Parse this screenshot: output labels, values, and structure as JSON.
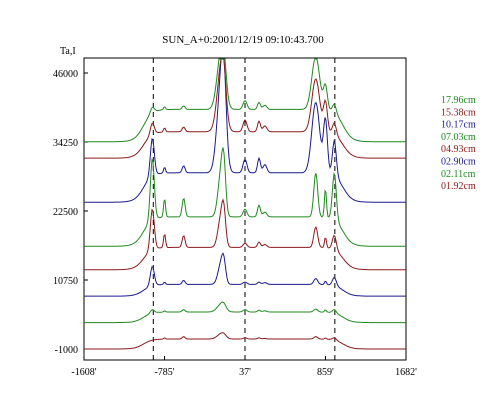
{
  "chart_data": {
    "type": "line",
    "title": "SUN_A+0:2001/12/19 09:10:43.700",
    "ylabel": "Ta,I",
    "xlabel": "",
    "xlim": [
      -1608,
      1682
    ],
    "ylim": [
      -1000,
      49000
    ],
    "x_ticks": [
      -1608,
      -785,
      37,
      859,
      1682
    ],
    "x_tick_labels": [
      "-1608'",
      "-785'",
      "37'",
      "859'",
      "1682'"
    ],
    "y_ticks": [
      46000,
      34250,
      22500,
      10750,
      -1000
    ],
    "y_tick_labels": [
      "46000",
      "34250",
      "22500",
      "10750",
      "-1000"
    ],
    "dashed_markers_x": [
      -900,
      37,
      955
    ],
    "grid": false,
    "legend_position": "right",
    "series": [
      {
        "name": "01.92cm",
        "color": "#8b1a1a",
        "baseline": -1000,
        "peaks": [
          [
            -910,
            0,
            20
          ],
          [
            -785,
            200,
            10
          ],
          [
            -590,
            400,
            15
          ],
          [
            -210,
            800,
            40
          ],
          [
            -180,
            400,
            25
          ],
          [
            37,
            200,
            20
          ],
          [
            180,
            200,
            15
          ],
          [
            240,
            100,
            20
          ],
          [
            760,
            400,
            20
          ],
          [
            859,
            200,
            10
          ],
          [
            950,
            400,
            20
          ]
        ],
        "plateau": 1700,
        "plateau_range": [
          -1000,
          1040
        ],
        "plateau_edge": 45
      },
      {
        "name": "02.11cm",
        "color": "#1f8a1f",
        "baseline": 3500,
        "peaks": [
          [
            -910,
            600,
            20
          ],
          [
            -785,
            200,
            10
          ],
          [
            -590,
            400,
            15
          ],
          [
            -210,
            1200,
            40
          ],
          [
            -180,
            700,
            25
          ],
          [
            37,
            400,
            20
          ],
          [
            180,
            300,
            15
          ],
          [
            240,
            200,
            20
          ],
          [
            760,
            500,
            20
          ],
          [
            859,
            400,
            10
          ],
          [
            950,
            600,
            20
          ]
        ],
        "plateau": 1800,
        "plateau_range": [
          -1000,
          1040
        ],
        "plateau_edge": 45
      },
      {
        "name": "02.90cm",
        "color": "#1a1a8b",
        "baseline": 8000,
        "peaks": [
          [
            -910,
            3300,
            20
          ],
          [
            -785,
            400,
            10
          ],
          [
            -590,
            700,
            15
          ],
          [
            -210,
            3300,
            30
          ],
          [
            -180,
            3000,
            20
          ],
          [
            37,
            400,
            20
          ],
          [
            180,
            400,
            15
          ],
          [
            240,
            300,
            20
          ],
          [
            760,
            1000,
            20
          ],
          [
            859,
            600,
            10
          ],
          [
            950,
            1400,
            20
          ]
        ],
        "plateau": 2000,
        "plateau_range": [
          -1000,
          1040
        ],
        "plateau_edge": 45
      },
      {
        "name": "04.93cm",
        "color": "#8b1a1a",
        "baseline": 12500,
        "peaks": [
          [
            -910,
            7000,
            20
          ],
          [
            -785,
            2400,
            10
          ],
          [
            -590,
            2000,
            15
          ],
          [
            -210,
            4800,
            30
          ],
          [
            -180,
            4800,
            20
          ],
          [
            37,
            700,
            20
          ],
          [
            180,
            900,
            15
          ],
          [
            240,
            500,
            20
          ],
          [
            760,
            3500,
            20
          ],
          [
            859,
            1800,
            10
          ],
          [
            950,
            2500,
            20
          ]
        ],
        "plateau": 3800,
        "plateau_range": [
          -1000,
          1040
        ],
        "plateau_edge": 45
      },
      {
        "name": "07.03cm",
        "color": "#1f8a1f",
        "baseline": 16500,
        "peaks": [
          [
            -910,
            10500,
            20
          ],
          [
            -785,
            3200,
            10
          ],
          [
            -590,
            3200,
            15
          ],
          [
            -210,
            7000,
            30
          ],
          [
            -180,
            7000,
            20
          ],
          [
            37,
            1300,
            20
          ],
          [
            180,
            2000,
            15
          ],
          [
            240,
            800,
            20
          ],
          [
            760,
            7500,
            20
          ],
          [
            859,
            5000,
            10
          ],
          [
            950,
            8000,
            20
          ]
        ],
        "plateau": 5000,
        "plateau_range": [
          -1000,
          1040
        ],
        "plateau_edge": 45
      },
      {
        "name": "10.17cm",
        "color": "#1a1a8b",
        "baseline": 24000,
        "peaks": [
          [
            -910,
            6500,
            20
          ],
          [
            -785,
            1000,
            10
          ],
          [
            -590,
            1200,
            15
          ],
          [
            -210,
            14000,
            40
          ],
          [
            -180,
            10000,
            25
          ],
          [
            37,
            2300,
            20
          ],
          [
            180,
            2500,
            15
          ],
          [
            240,
            1400,
            20
          ],
          [
            760,
            12000,
            40
          ],
          [
            859,
            9000,
            20
          ],
          [
            950,
            6000,
            20
          ]
        ],
        "plateau": 5000,
        "plateau_range": [
          -1000,
          1040
        ],
        "plateau_edge": 45
      },
      {
        "name": "15.38cm",
        "color": "#8b1a1a",
        "baseline": 31500,
        "peaks": [
          [
            -910,
            2000,
            20
          ],
          [
            -785,
            700,
            10
          ],
          [
            -590,
            800,
            15
          ],
          [
            -210,
            10000,
            40
          ],
          [
            -180,
            5000,
            25
          ],
          [
            37,
            2000,
            20
          ],
          [
            180,
            1800,
            15
          ],
          [
            240,
            1000,
            20
          ],
          [
            760,
            9000,
            40
          ],
          [
            859,
            5000,
            20
          ],
          [
            950,
            2000,
            20
          ]
        ],
        "plateau": 4500,
        "plateau_range": [
          -1000,
          1040
        ],
        "plateau_edge": 45
      },
      {
        "name": "17.96cm",
        "color": "#1f8a1f",
        "baseline": 34300,
        "peaks": [
          [
            -910,
            1000,
            20
          ],
          [
            -785,
            500,
            10
          ],
          [
            -590,
            600,
            15
          ],
          [
            -210,
            9000,
            40
          ],
          [
            -180,
            4000,
            25
          ],
          [
            37,
            1500,
            20
          ],
          [
            180,
            1200,
            15
          ],
          [
            240,
            700,
            20
          ],
          [
            760,
            9000,
            40
          ],
          [
            859,
            4000,
            20
          ],
          [
            950,
            1500,
            20
          ]
        ],
        "plateau": 5500,
        "plateau_range": [
          -1000,
          1040
        ],
        "plateau_edge": 45
      }
    ]
  }
}
